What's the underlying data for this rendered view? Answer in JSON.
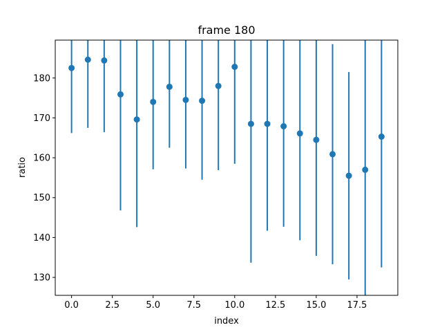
{
  "chart_data": {
    "type": "scatter",
    "title": "frame 180",
    "xlabel": "index",
    "ylabel": "ratio",
    "xlim": [
      -1.0,
      20.0
    ],
    "ylim": [
      125.5,
      189.5
    ],
    "xticks": [
      0,
      2.5,
      5,
      7.5,
      10,
      12.5,
      15,
      17.5
    ],
    "xtick_labels": [
      "0.0",
      "2.5",
      "5.0",
      "7.5",
      "10.0",
      "12.5",
      "15.0",
      "17.5"
    ],
    "yticks": [
      130,
      140,
      150,
      160,
      170,
      180
    ],
    "ytick_labels": [
      "130",
      "140",
      "150",
      "160",
      "170",
      "180"
    ],
    "grid": false,
    "color": "#1f77b4",
    "series": [
      {
        "x": [
          0,
          1,
          2,
          3,
          4,
          5,
          6,
          7,
          8,
          9,
          10,
          11,
          12,
          13,
          14,
          15,
          16,
          17,
          18,
          19
        ],
        "y": [
          182.5,
          184.6,
          184.4,
          175.9,
          169.6,
          174.0,
          177.8,
          174.5,
          174.3,
          178.0,
          182.8,
          168.5,
          168.5,
          167.9,
          166.1,
          164.5,
          160.9,
          155.5,
          157.0,
          165.3
        ],
        "y_low": [
          166.2,
          167.5,
          166.4,
          146.8,
          142.6,
          157.1,
          162.5,
          157.3,
          154.5,
          156.9,
          158.5,
          133.7,
          141.7,
          142.7,
          139.3,
          135.4,
          133.3,
          129.5,
          125.5,
          132.5
        ],
        "y_high": [
          189.5,
          189.5,
          189.5,
          189.5,
          189.5,
          189.5,
          189.5,
          189.5,
          189.5,
          189.5,
          189.5,
          189.5,
          189.5,
          189.5,
          189.5,
          189.5,
          188.5,
          181.5,
          189.5,
          189.5
        ]
      }
    ]
  }
}
